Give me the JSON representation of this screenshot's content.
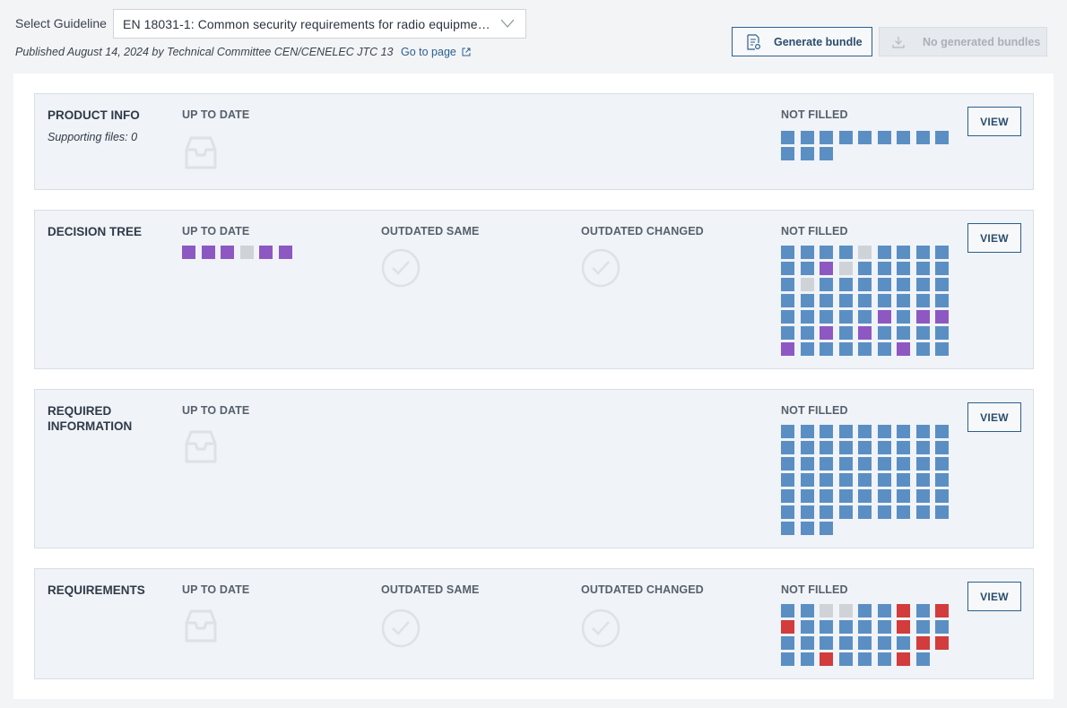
{
  "header": {
    "select_label": "Select Guideline",
    "select_value": "EN 18031-1: Common security requirements for radio equipme…",
    "published": "Published August 14, 2024 by Technical Committee CEN/CENELEC JTC 13",
    "goto_label": "Go to page",
    "generate_label": "Generate bundle",
    "no_bundles_label": "No generated bundles"
  },
  "colors": {
    "blue": "#5b8fc4",
    "purple": "#8e58c3",
    "grey": "#cfd3d8",
    "red": "#d23c3c",
    "accent": "#2c5f8e"
  },
  "cards": [
    {
      "title": "PRODUCT INFO",
      "subtitle": "Supporting files: 0",
      "col_up": "UP TO DATE",
      "col_not": "NOT FILLED",
      "view": "VIEW",
      "not_filled": [
        "b",
        "b",
        "b",
        "b",
        "b",
        "b",
        "b",
        "b",
        "b",
        "b",
        "b",
        "b"
      ]
    },
    {
      "title": "DECISION TREE",
      "col_up": "UP TO DATE",
      "col_same": "OUTDATED SAME",
      "col_changed": "OUTDATED CHANGED",
      "col_not": "NOT FILLED",
      "view": "VIEW",
      "up_to_date": [
        "p",
        "p",
        "p",
        "g",
        "p",
        "p"
      ],
      "not_filled": [
        "b",
        "b",
        "b",
        "b",
        "g",
        "b",
        "b",
        "b",
        "b",
        "b",
        "b",
        "p",
        "g",
        "b",
        "b",
        "b",
        "b",
        "b",
        "b",
        "g",
        "b",
        "b",
        "b",
        "b",
        "b",
        "b",
        "b",
        "b",
        "b",
        "b",
        "b",
        "b",
        "b",
        "b",
        "b",
        "b",
        "b",
        "b",
        "b",
        "b",
        "b",
        "p",
        "b",
        "p",
        "p",
        "b",
        "b",
        "p",
        "b",
        "p",
        "b",
        "b",
        "b",
        "b",
        "p",
        "b",
        "b",
        "b",
        "b",
        "b",
        "p",
        "b",
        "b"
      ]
    },
    {
      "title": "REQUIRED INFORMATION",
      "col_up": "UP TO DATE",
      "col_not": "NOT FILLED",
      "view": "VIEW",
      "not_filled": [
        "b",
        "b",
        "b",
        "b",
        "b",
        "b",
        "b",
        "b",
        "b",
        "b",
        "b",
        "b",
        "b",
        "b",
        "b",
        "b",
        "b",
        "b",
        "b",
        "b",
        "b",
        "b",
        "b",
        "b",
        "b",
        "b",
        "b",
        "b",
        "b",
        "b",
        "b",
        "b",
        "b",
        "b",
        "b",
        "b",
        "b",
        "b",
        "b",
        "b",
        "b",
        "b",
        "b",
        "b",
        "b",
        "b",
        "b",
        "b",
        "b",
        "b",
        "b",
        "b",
        "b",
        "b",
        "b",
        "b",
        "b"
      ]
    },
    {
      "title": "REQUIREMENTS",
      "col_up": "UP TO DATE",
      "col_same": "OUTDATED SAME",
      "col_changed": "OUTDATED CHANGED",
      "col_not": "NOT FILLED",
      "view": "VIEW",
      "not_filled": [
        "b",
        "b",
        "g",
        "g",
        "b",
        "b",
        "r",
        "b",
        "r",
        "r",
        "b",
        "b",
        "b",
        "b",
        "b",
        "r",
        "b",
        "b",
        "b",
        "b",
        "b",
        "b",
        "b",
        "b",
        "b",
        "r",
        "r",
        "b",
        "b",
        "r",
        "b",
        "b",
        "b",
        "r",
        "b"
      ]
    }
  ]
}
